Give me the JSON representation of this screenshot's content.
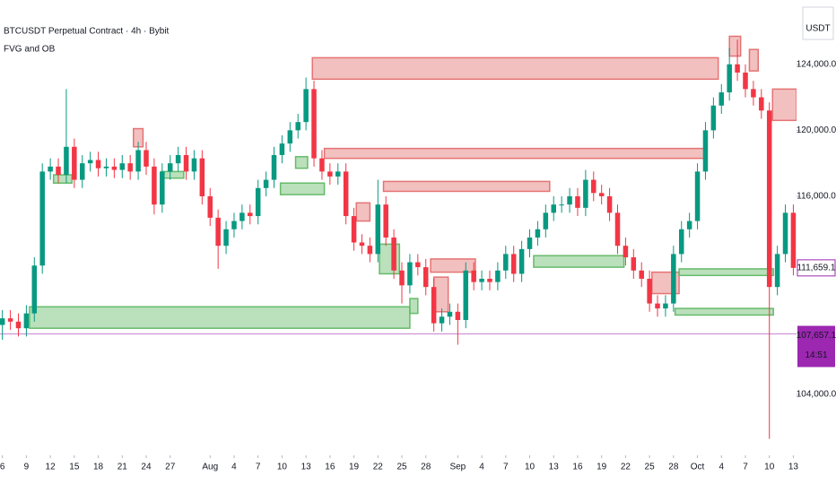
{
  "chart_data": {
    "type": "candlestick",
    "title": "BTCUSDT Perpetual Contract · 4h · Bybit",
    "subtitle": "FVG and OB",
    "axis_label": "USDT",
    "up_color": "#089981",
    "down_color": "#f23645",
    "bull_color": "#66bb6a",
    "bear_color": "#e57373",
    "xlim": [
      -0.3,
      99.4
    ],
    "ylim": [
      101000,
      127900
    ],
    "xticks": [
      {
        "value": 0,
        "label": "6"
      },
      {
        "value": 3,
        "label": "9"
      },
      {
        "value": 6,
        "label": "12"
      },
      {
        "value": 9,
        "label": "15"
      },
      {
        "value": 12,
        "label": "18"
      },
      {
        "value": 15,
        "label": "21"
      },
      {
        "value": 18,
        "label": "24"
      },
      {
        "value": 21,
        "label": "27"
      },
      {
        "value": 26,
        "label": "Aug"
      },
      {
        "value": 29,
        "label": "4"
      },
      {
        "value": 32,
        "label": "7"
      },
      {
        "value": 35,
        "label": "10"
      },
      {
        "value": 38,
        "label": "13"
      },
      {
        "value": 41,
        "label": "16"
      },
      {
        "value": 44,
        "label": "19"
      },
      {
        "value": 47,
        "label": "22"
      },
      {
        "value": 50,
        "label": "25"
      },
      {
        "value": 53,
        "label": "28"
      },
      {
        "value": 57,
        "label": "Sep"
      },
      {
        "value": 60,
        "label": "4"
      },
      {
        "value": 63,
        "label": "7"
      },
      {
        "value": 66,
        "label": "10"
      },
      {
        "value": 69,
        "label": "13"
      },
      {
        "value": 72,
        "label": "16"
      },
      {
        "value": 75,
        "label": "19"
      },
      {
        "value": 78,
        "label": "22"
      },
      {
        "value": 81,
        "label": "25"
      },
      {
        "value": 84,
        "label": "28"
      },
      {
        "value": 87,
        "label": "Oct"
      },
      {
        "value": 90,
        "label": "4"
      },
      {
        "value": 93,
        "label": "7"
      },
      {
        "value": 96,
        "label": "10"
      },
      {
        "value": 99,
        "label": "13"
      }
    ],
    "yticks": [
      {
        "value": 124000,
        "label": "124,000.0"
      },
      {
        "value": 120000,
        "label": "120,000.0"
      },
      {
        "value": 116000,
        "label": "116,000.0"
      },
      {
        "value": 104000,
        "label": "104,000.0"
      }
    ],
    "last_price": {
      "value": 111659.1,
      "label": "111,659.1"
    },
    "price_line": {
      "value": 107657.1,
      "label": "107,657.1",
      "time": "14:51"
    },
    "x": [
      0,
      1,
      2,
      3,
      4,
      5,
      6,
      7,
      8,
      9,
      10,
      11,
      12,
      13,
      14,
      15,
      16,
      17,
      18,
      19,
      20,
      21,
      22,
      23,
      24,
      25,
      26,
      27,
      28,
      29,
      30,
      31,
      32,
      33,
      34,
      35,
      36,
      37,
      38,
      39,
      40,
      41,
      42,
      43,
      44,
      45,
      46,
      47,
      48,
      49,
      50,
      51,
      52,
      53,
      54,
      55,
      56,
      57,
      58,
      59,
      60,
      61,
      62,
      63,
      64,
      65,
      66,
      67,
      68,
      69,
      70,
      71,
      72,
      73,
      74,
      75,
      76,
      77,
      78,
      79,
      80,
      81,
      82,
      83,
      84,
      85,
      86,
      87,
      88,
      89,
      90,
      91,
      92,
      93,
      94,
      95,
      96,
      97,
      98,
      99
    ],
    "open": [
      108200,
      108600,
      108400,
      108000,
      108900,
      111800,
      117500,
      117800,
      117300,
      119000,
      117000,
      118000,
      118200,
      117700,
      117800,
      117600,
      118000,
      117500,
      118800,
      117800,
      115500,
      117500,
      118000,
      118500,
      117500,
      118300,
      116000,
      114700,
      113000,
      114000,
      114500,
      115000,
      114800,
      116500,
      117000,
      118500,
      119200,
      120000,
      120500,
      122500,
      118300,
      117500,
      117200,
      117500,
      114800,
      113200,
      113000,
      112500,
      115500,
      113500,
      111500,
      110600,
      112000,
      111700,
      110500,
      108300,
      108700,
      109000,
      108500,
      111500,
      110800,
      111000,
      110800,
      111500,
      112500,
      111300,
      112800,
      113500,
      114000,
      115000,
      115500,
      115500,
      116000,
      115300,
      117000,
      116200,
      116000,
      115000,
      113000,
      112300,
      111500,
      111000,
      109500,
      109200,
      109500,
      112500,
      114000,
      114500,
      117500,
      120000,
      121500,
      122300,
      124000,
      123500,
      122500,
      122000,
      121200,
      110500,
      112500,
      115000
    ],
    "high": [
      109100,
      109100,
      108900,
      109400,
      112300,
      118000,
      118300,
      118300,
      122500,
      119500,
      118500,
      118700,
      118700,
      118300,
      118300,
      118500,
      118500,
      119300,
      119300,
      118300,
      118000,
      118500,
      119000,
      119000,
      118800,
      118800,
      116500,
      115200,
      114500,
      115000,
      115500,
      115500,
      117000,
      117500,
      119000,
      119700,
      120500,
      121000,
      123200,
      123000,
      118800,
      118000,
      118000,
      118000,
      115300,
      113700,
      113500,
      117000,
      116000,
      114000,
      112000,
      112500,
      112500,
      112200,
      111000,
      109200,
      109500,
      109500,
      112000,
      112000,
      111500,
      111500,
      112000,
      113000,
      113000,
      113300,
      114000,
      114500,
      115500,
      116000,
      116000,
      116500,
      116500,
      117600,
      117500,
      116700,
      116500,
      115500,
      113500,
      112800,
      112000,
      111500,
      110000,
      110000,
      113000,
      114500,
      115000,
      118000,
      120500,
      122000,
      122800,
      125000,
      125500,
      124000,
      123000,
      122500,
      121700,
      113000,
      115500,
      115500
    ],
    "low": [
      107300,
      107900,
      107500,
      107500,
      108400,
      111300,
      117000,
      116800,
      116800,
      116500,
      116500,
      117500,
      117200,
      117200,
      117100,
      117100,
      117000,
      117000,
      117300,
      114900,
      115000,
      117000,
      117500,
      117000,
      117000,
      115500,
      114200,
      111600,
      112500,
      113500,
      114000,
      114300,
      114300,
      116000,
      116500,
      118000,
      118700,
      119500,
      120000,
      117800,
      117000,
      116700,
      116700,
      114300,
      112700,
      112500,
      112000,
      112000,
      113000,
      111000,
      109500,
      110100,
      111200,
      110000,
      107800,
      107800,
      108200,
      107000,
      108000,
      110300,
      110300,
      110300,
      110300,
      111000,
      110800,
      110800,
      112300,
      113000,
      113500,
      114500,
      115000,
      115000,
      114800,
      114800,
      115700,
      115500,
      114500,
      112500,
      111800,
      111000,
      110500,
      109000,
      108700,
      108700,
      109000,
      112000,
      113500,
      114000,
      117000,
      119500,
      121000,
      121800,
      123000,
      122000,
      121500,
      120700,
      101300,
      110000,
      112000,
      111200
    ],
    "close": [
      108600,
      108400,
      108000,
      108900,
      111800,
      117500,
      117800,
      117300,
      119000,
      117000,
      118000,
      118200,
      117700,
      117800,
      117600,
      118000,
      117500,
      118800,
      117800,
      115500,
      117500,
      118000,
      118500,
      117500,
      118300,
      116000,
      114700,
      113000,
      114000,
      114500,
      115000,
      114800,
      116500,
      117000,
      118500,
      119200,
      120000,
      120500,
      122500,
      118300,
      117500,
      117200,
      117500,
      114800,
      113200,
      113000,
      112500,
      115500,
      113500,
      111500,
      110600,
      112000,
      111700,
      110500,
      108300,
      108700,
      109000,
      108500,
      111500,
      110800,
      111000,
      110800,
      111500,
      112500,
      111300,
      112800,
      113500,
      114000,
      115000,
      115500,
      115500,
      116000,
      115300,
      117000,
      116200,
      116000,
      115000,
      113000,
      112300,
      111500,
      111000,
      109500,
      109200,
      109500,
      112500,
      114000,
      114500,
      117500,
      120000,
      121500,
      122300,
      124000,
      123500,
      122500,
      122000,
      121200,
      110500,
      112500,
      115000,
      111659.1
    ],
    "zones": [
      {
        "kind": "bear",
        "x": [
          38.8,
          89.6
        ],
        "y": [
          123100,
          124400
        ]
      },
      {
        "kind": "bear",
        "x": [
          40.3,
          87.9
        ],
        "y": [
          118300,
          118900
        ]
      },
      {
        "kind": "bear",
        "x": [
          47.7,
          68.5
        ],
        "y": [
          116300,
          116900
        ]
      },
      {
        "kind": "bear",
        "x": [
          96.4,
          100
        ],
        "y": [
          120600,
          122500
        ]
      },
      {
        "kind": "bear",
        "x": [
          53.6,
          59.2
        ],
        "y": [
          111400,
          112200
        ]
      },
      {
        "kind": "bear",
        "x": [
          54,
          55.8
        ],
        "y": [
          109000,
          111100
        ]
      },
      {
        "kind": "bear",
        "x": [
          81.3,
          84.7
        ],
        "y": [
          110100,
          111400
        ]
      },
      {
        "kind": "bear",
        "x": [
          91,
          92.4
        ],
        "y": [
          124500,
          125700
        ]
      },
      {
        "kind": "bear",
        "x": [
          93.5,
          94.6
        ],
        "y": [
          123600,
          124900
        ]
      },
      {
        "kind": "bear",
        "x": [
          16.4,
          17.6
        ],
        "y": [
          119000,
          120100
        ]
      },
      {
        "kind": "bear",
        "x": [
          44.3,
          46
        ],
        "y": [
          114500,
          115600
        ]
      },
      {
        "kind": "bull",
        "x": [
          3.4,
          51
        ],
        "y": [
          108000,
          109300
        ]
      },
      {
        "kind": "bull",
        "x": [
          34.8,
          40.3
        ],
        "y": [
          116100,
          116800
        ]
      },
      {
        "kind": "bull",
        "x": [
          47.2,
          49.7
        ],
        "y": [
          111300,
          113100
        ]
      },
      {
        "kind": "bull",
        "x": [
          66.5,
          77.8
        ],
        "y": [
          111700,
          112400
        ]
      },
      {
        "kind": "bull",
        "x": [
          84.7,
          96.5
        ],
        "y": [
          111200,
          111600
        ]
      },
      {
        "kind": "bull",
        "x": [
          84.2,
          96.5
        ],
        "y": [
          108800,
          109200
        ]
      },
      {
        "kind": "bull",
        "x": [
          6.4,
          8.7
        ],
        "y": [
          116800,
          117300
        ]
      },
      {
        "kind": "bull",
        "x": [
          19.9,
          22.7
        ],
        "y": [
          117100,
          117500
        ]
      },
      {
        "kind": "bull",
        "x": [
          51,
          52
        ],
        "y": [
          108900,
          109800
        ]
      },
      {
        "kind": "bull",
        "x": [
          36.7,
          38.2
        ],
        "y": [
          117700,
          118400
        ]
      }
    ]
  }
}
